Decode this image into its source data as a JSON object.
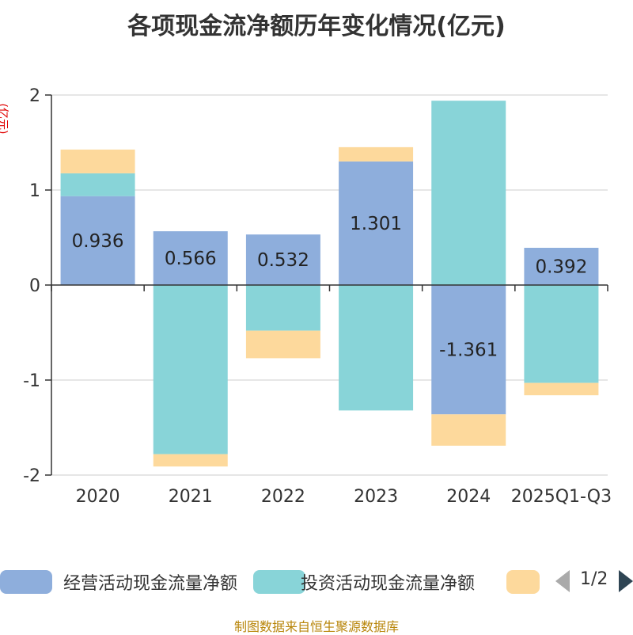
{
  "chart_data": {
    "type": "bar",
    "stacked": true,
    "title": "各项现金流净额历年变化情况(亿元)",
    "ylabel": "(亿元)",
    "ylim": [
      -2,
      2
    ],
    "yticks": [
      2,
      1,
      0,
      -1,
      -2
    ],
    "ytick_labels": [
      "2",
      "1",
      "0",
      "-1",
      "-2"
    ],
    "categories": [
      "2020",
      "2021",
      "2022",
      "2023",
      "2024",
      "2025Q1-Q3"
    ],
    "series": [
      {
        "name": "经营活动现金流量净额",
        "color": "#8eaedc",
        "values": [
          0.936,
          0.566,
          0.532,
          1.301,
          -1.361,
          0.392
        ],
        "labels": [
          "0.936",
          "0.566",
          "0.532",
          "1.301",
          "-1.361",
          "0.392"
        ]
      },
      {
        "name": "投资活动现金流量净额",
        "color": "#88d4d8",
        "values": [
          0.24,
          -1.78,
          -0.48,
          -1.32,
          1.94,
          -1.03
        ]
      },
      {
        "name": "",
        "color": "#fdd99c",
        "values": [
          0.25,
          -0.13,
          -0.29,
          0.15,
          -0.33,
          -0.13
        ]
      }
    ],
    "legend": {
      "page": "1/2",
      "placement": "bottom"
    },
    "grid": true
  },
  "source": "制图数据来自恒生聚源数据库"
}
